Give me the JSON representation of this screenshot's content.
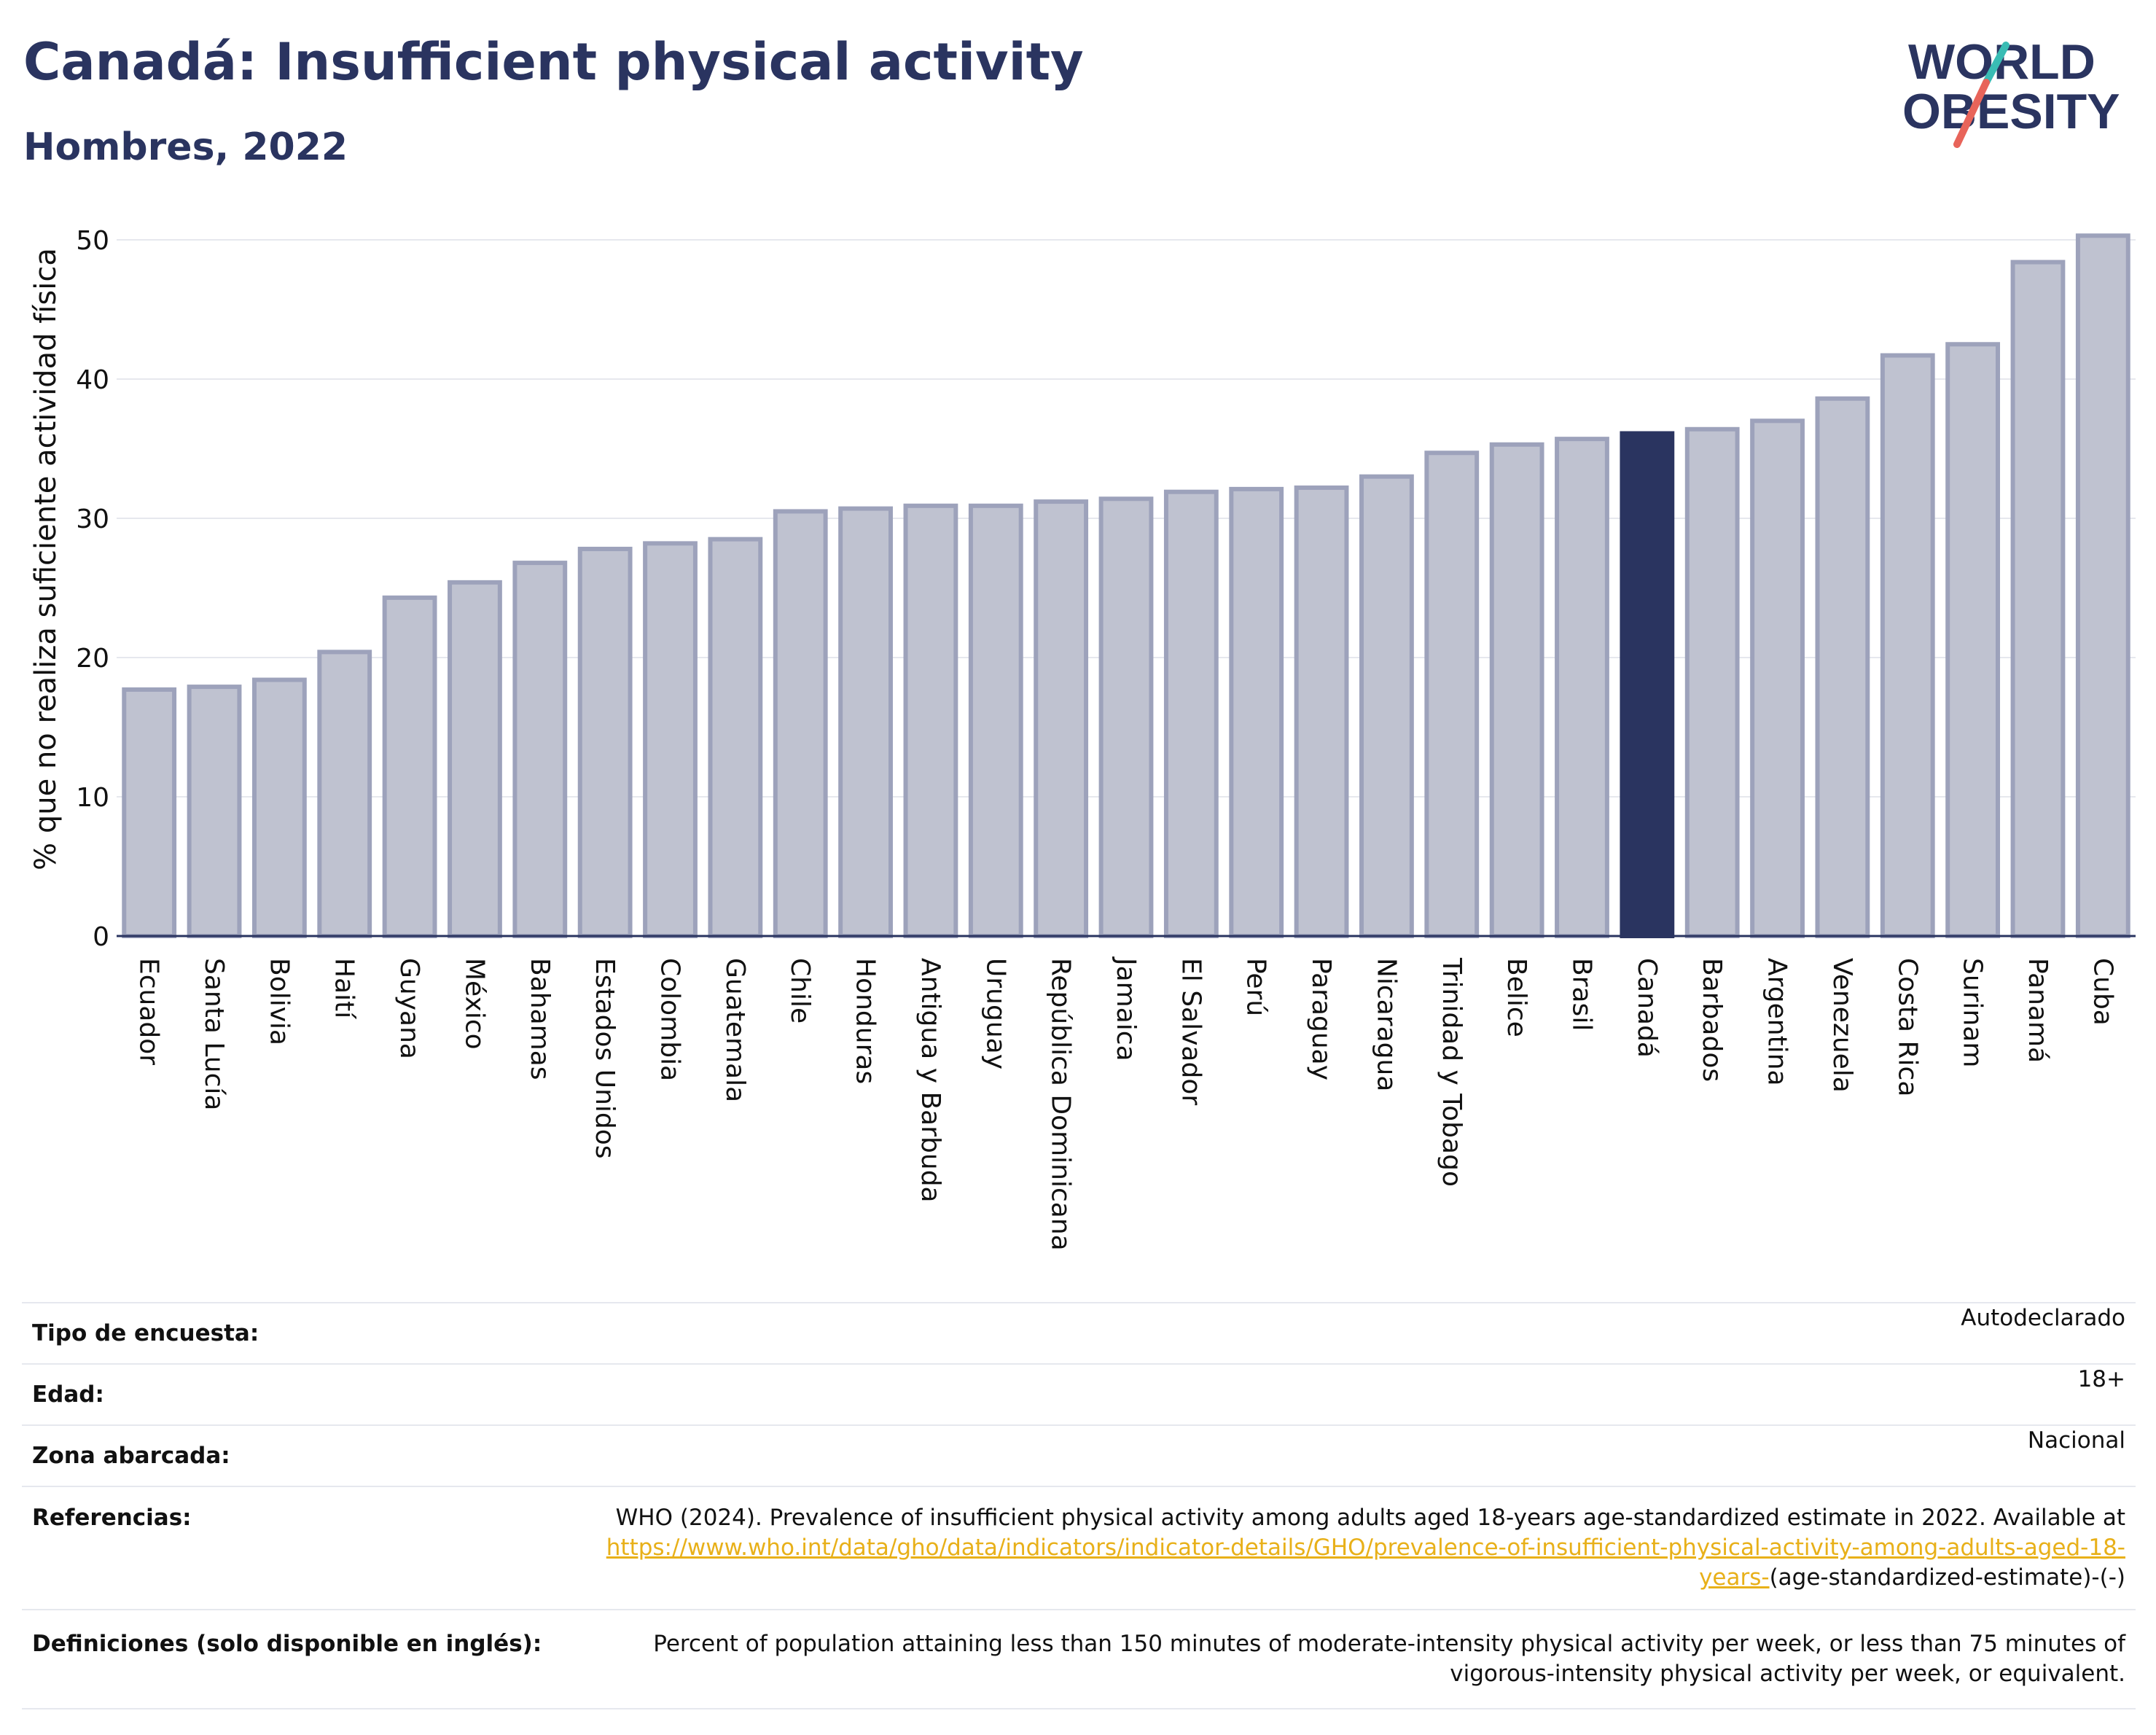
{
  "header": {
    "title": "Canadá: Insufficient physical activity",
    "subtitle": "Hombres, 2022",
    "logo_line1": "WORLD",
    "logo_line2": "OBESITY"
  },
  "chart_data": {
    "type": "bar",
    "title": "Canadá: Insufficient physical activity",
    "subtitle": "Hombres, 2022",
    "xlabel": "",
    "ylabel": "% que no realiza suficiente actividad física",
    "ylim": [
      0,
      52
    ],
    "yticks": [
      0,
      10,
      20,
      30,
      40,
      50
    ],
    "grid": true,
    "highlight": "Canadá",
    "colors": {
      "bar": "#bfc2d0",
      "bar_edge": "#9da2bb",
      "highlight": "#2a3460",
      "grid": "#e6e8ee",
      "axis": "#2a3460"
    },
    "categories": [
      "Ecuador",
      "Santa Lucía",
      "Bolivia",
      "Haití",
      "Guyana",
      "México",
      "Bahamas",
      "Estados Unidos",
      "Colombia",
      "Guatemala",
      "Chile",
      "Honduras",
      "Antigua y Barbuda",
      "Uruguay",
      "República Dominicana",
      "Jamaica",
      "El Salvador",
      "Perú",
      "Paraguay",
      "Nicaragua",
      "Trinidad y Tobago",
      "Belice",
      "Brasil",
      "Canadá",
      "Barbados",
      "Argentina",
      "Venezuela",
      "Costa Rica",
      "Surinam",
      "Panamá",
      "Cuba"
    ],
    "values": [
      17.7,
      17.9,
      18.4,
      20.4,
      24.3,
      25.4,
      26.8,
      27.8,
      28.2,
      28.5,
      30.5,
      30.7,
      30.9,
      30.9,
      31.2,
      31.4,
      31.9,
      32.1,
      32.2,
      33.0,
      34.7,
      35.3,
      35.7,
      36.1,
      36.4,
      37.0,
      38.6,
      41.7,
      42.5,
      48.4,
      50.3
    ]
  },
  "info": {
    "survey_label": "Tipo de encuesta:",
    "survey_value": "Autodeclarado",
    "age_label": "Edad:",
    "age_value": "18+",
    "area_label": "Zona abarcada:",
    "area_value": "Nacional",
    "refs_label": "Referencias:",
    "refs_text": "WHO (2024). Prevalence of insufficient physical activity among adults aged 18-years age-standardized estimate in 2022. Available at",
    "refs_link": "https://www.who.int/data/gho/data/indicators/indicator-details/GHO/prevalence-of-insufficient-physical-activity-among-adults-aged-18-years-",
    "refs_tail": "(age-standardized-estimate)-(-)",
    "defs_label": "Definiciones (solo disponible en inglés):",
    "defs_text": "Percent of population attaining less than 150 minutes of moderate-intensity physical activity per week, or less than 75 minutes of vigorous-intensity physical activity per week, or equivalent."
  }
}
